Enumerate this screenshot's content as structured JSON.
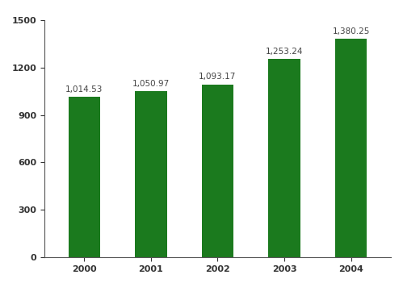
{
  "chart_data": {
    "type": "bar",
    "categories": [
      "2000",
      "2001",
      "2002",
      "2003",
      "2004"
    ],
    "values": [
      1014.53,
      1050.97,
      1093.17,
      1253.24,
      1380.25
    ],
    "value_labels": [
      "1,014.53",
      "1,050.97",
      "1,093.17",
      "1,253.24",
      "1,380.25"
    ],
    "data_labels": true,
    "color": "#1b7a1e",
    "ylim": [
      0,
      1500
    ],
    "yticks": [
      0,
      300,
      600,
      900,
      1200,
      1500
    ],
    "grid": false
  }
}
